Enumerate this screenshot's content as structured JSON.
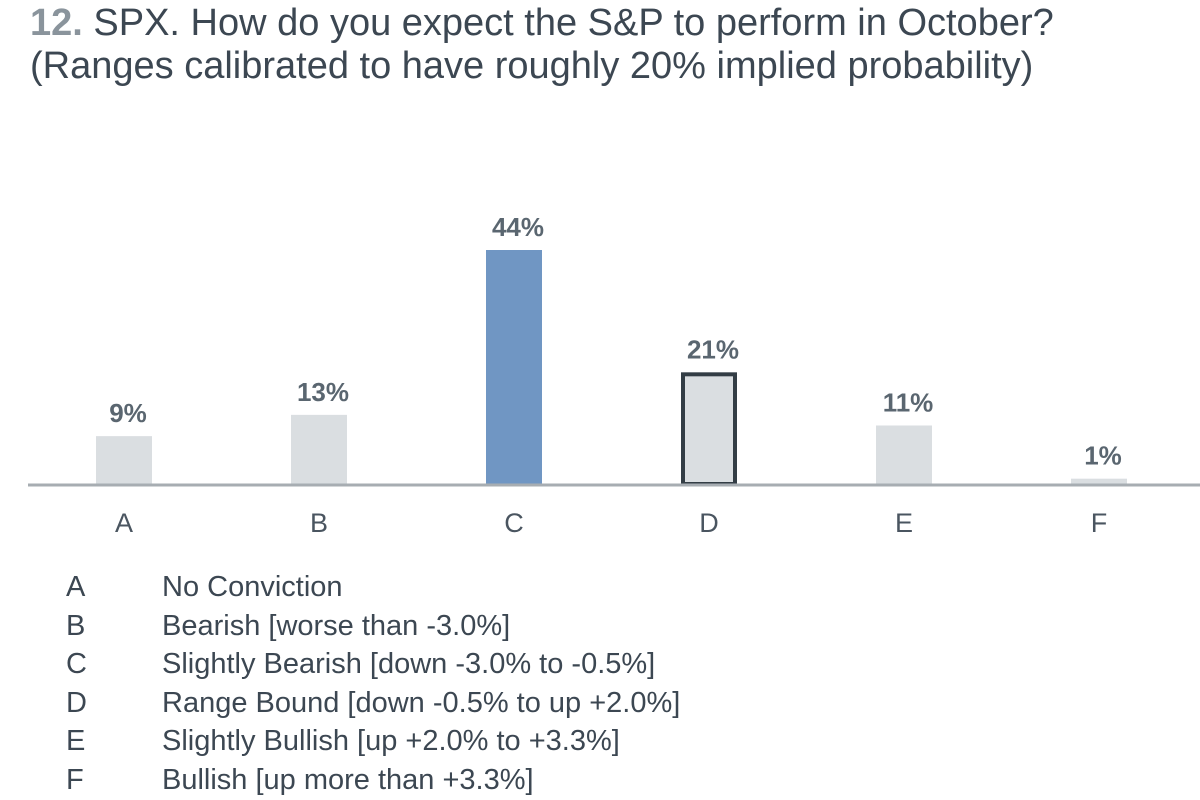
{
  "title_number": "12.",
  "title_text": "SPX. How do you expect the S&P to perform in October? (Ranges calibrated to have roughly 20% implied probability)",
  "chart_data": {
    "type": "bar",
    "categories": [
      "A",
      "B",
      "C",
      "D",
      "E",
      "F"
    ],
    "values": [
      9,
      13,
      44,
      21,
      11,
      1
    ],
    "value_labels": [
      "9%",
      "13%",
      "44%",
      "21%",
      "11%",
      "1%"
    ],
    "ylim": [
      0,
      46
    ],
    "grid": false,
    "highlight": {
      "C": "filled-blue",
      "D": "outlined"
    },
    "colors": {
      "default": "#dadee1",
      "highlight": "#7096c3",
      "outline": "#333d45",
      "axis": "#a7adb2"
    },
    "legend": [
      {
        "key": "A",
        "label": "No Conviction"
      },
      {
        "key": "B",
        "label": "Bearish [worse than -3.0%]"
      },
      {
        "key": "C",
        "label": "Slightly Bearish [down -3.0% to -0.5%]"
      },
      {
        "key": "D",
        "label": "Range Bound [down -0.5% to up +2.0%]"
      },
      {
        "key": "E",
        "label": "Slightly Bullish [up +2.0% to +3.3%]"
      },
      {
        "key": "F",
        "label": "Bullish [up more than +3.3%]"
      }
    ]
  }
}
